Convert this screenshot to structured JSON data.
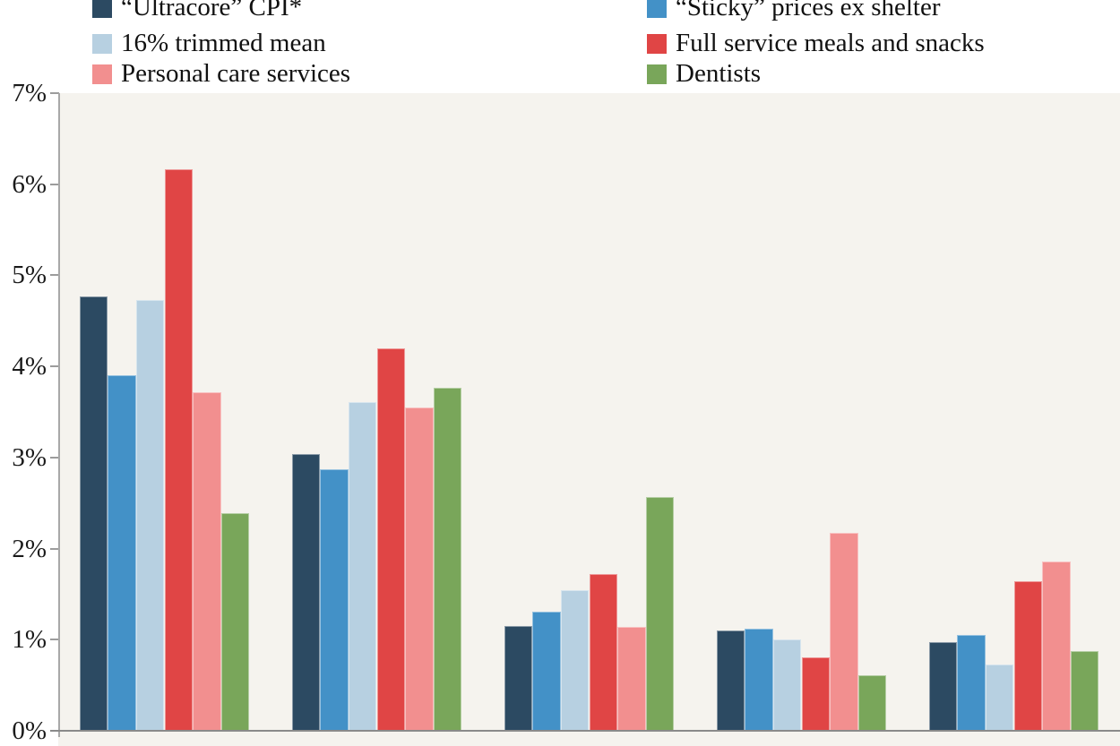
{
  "chart": {
    "background": "#ffffff",
    "plot_background": "#f5f3ee",
    "y_axis_color": "#a8a8a8",
    "x_axis_color": "#8a8a8a",
    "tick_color": "#9c9c9c",
    "y_ticks": [
      "7%",
      "6%",
      "5%",
      "4%",
      "3%",
      "2%",
      "1%",
      "0%"
    ]
  },
  "chart_data": {
    "type": "bar",
    "title": "",
    "categories": [
      "",
      "",
      "",
      "",
      ""
    ],
    "series": [
      {
        "name": "“Ultracore” CPI*",
        "color": "#2c4a62",
        "values": [
          4.77,
          3.04,
          1.15,
          1.1,
          0.97
        ]
      },
      {
        "name": "“Sticky” prices ex shelter",
        "color": "#4391c7",
        "values": [
          3.9,
          2.87,
          1.31,
          1.12,
          1.05
        ]
      },
      {
        "name": "16% trimmed mean",
        "color": "#b7d0e1",
        "values": [
          4.73,
          3.61,
          1.54,
          1.0,
          0.73
        ]
      },
      {
        "name": "Full service meals and snacks",
        "color": "#e04545",
        "values": [
          6.16,
          4.2,
          1.72,
          0.81,
          1.64
        ]
      },
      {
        "name": "Personal care services",
        "color": "#f28f8f",
        "values": [
          3.72,
          3.55,
          1.14,
          2.17,
          1.86
        ]
      },
      {
        "name": "Dentists",
        "color": "#79a65a",
        "values": [
          2.39,
          3.77,
          2.57,
          0.61,
          0.88
        ]
      }
    ],
    "ylim": [
      0,
      7
    ],
    "y_tick_step": 1,
    "y_tick_format": "percent",
    "grid": false,
    "legend_position": "top-two-columns",
    "legend_column_order": [
      [
        "“Ultracore” CPI*",
        "“Sticky” prices ex shelter"
      ],
      [
        "16% trimmed mean",
        "Full service meals and snacks"
      ],
      [
        "Personal care services",
        "Dentists"
      ]
    ],
    "x_axis_labels_visible": false
  }
}
